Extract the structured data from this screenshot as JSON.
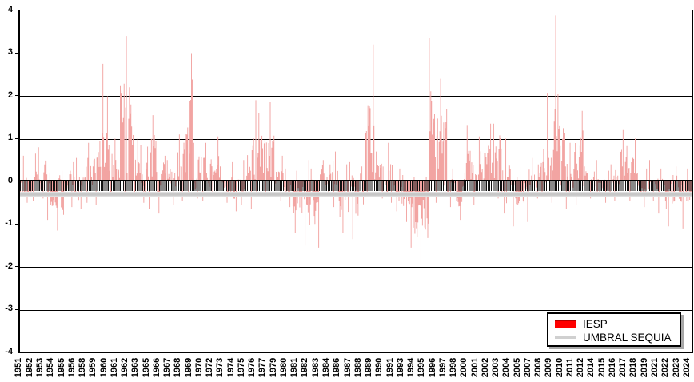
{
  "chart_data": {
    "type": "bar",
    "title": "",
    "description_visible": false,
    "x_range": [
      "1951-01",
      "2024-12"
    ],
    "total_months": 888,
    "x_label_month_interval": 14,
    "x_tick_labels": [
      "1951",
      "1952",
      "1953",
      "1954",
      "1955",
      "1956",
      "1958",
      "1959",
      "1960",
      "1961",
      "1962",
      "1963",
      "1965",
      "1966",
      "1967",
      "1968",
      "1969",
      "1970",
      "1972",
      "1973",
      "1974",
      "1975",
      "1976",
      "1977",
      "1979",
      "1980",
      "1981",
      "1982",
      "1983",
      "1984",
      "1986",
      "1987",
      "1988",
      "1989",
      "1990",
      "1991",
      "1993",
      "1994",
      "1995",
      "1996",
      "1997",
      "1998",
      "2000",
      "2001",
      "2002",
      "2003",
      "2004",
      "2005",
      "2007",
      "2008",
      "2009",
      "2010",
      "2011",
      "2012",
      "2014",
      "2015",
      "2016",
      "2017",
      "2018",
      "2019",
      "2021",
      "2022",
      "2023",
      "2024"
    ],
    "y_axis": {
      "min": -4,
      "max": 4,
      "tick_step": 1,
      "tick_labels": [
        "4",
        "3",
        "2",
        "1",
        "0",
        "-1",
        "-2",
        "-3",
        "-4"
      ],
      "grid": true,
      "grid_color": "#000000"
    },
    "series": [
      {
        "name": "IESP",
        "legend_color": "#ff0000",
        "bar_color": "#f2a4a2",
        "yearly_envelope": [
          {
            "year": 1951,
            "max": 0.6,
            "min": -0.5
          },
          {
            "year": 1952,
            "max": 0.65,
            "min": -0.45
          },
          {
            "year": 1953,
            "max": 0.8,
            "min": -0.4
          },
          {
            "year": 1954,
            "max": 0.2,
            "min": -0.9
          },
          {
            "year": 1955,
            "max": 0.25,
            "min": -1.15
          },
          {
            "year": 1956,
            "max": 0.45,
            "min": -0.6
          },
          {
            "year": 1957,
            "max": 0.55,
            "min": -0.65
          },
          {
            "year": 1958,
            "max": 0.9,
            "min": -0.5
          },
          {
            "year": 1959,
            "max": 0.95,
            "min": -0.55
          },
          {
            "year": 1960,
            "max": 2.75,
            "min": -0.3
          },
          {
            "year": 1961,
            "max": 1.0,
            "min": -0.35
          },
          {
            "year": 1962,
            "max": 3.4,
            "min": -0.25
          },
          {
            "year": 1963,
            "max": 2.2,
            "min": -0.3
          },
          {
            "year": 1964,
            "max": 0.85,
            "min": -0.5
          },
          {
            "year": 1965,
            "max": 1.55,
            "min": -0.65
          },
          {
            "year": 1966,
            "max": 0.6,
            "min": -0.75
          },
          {
            "year": 1967,
            "max": 0.5,
            "min": -0.55
          },
          {
            "year": 1968,
            "max": 1.1,
            "min": -0.45
          },
          {
            "year": 1969,
            "max": 3.0,
            "min": -0.25
          },
          {
            "year": 1970,
            "max": 0.9,
            "min": -0.4
          },
          {
            "year": 1971,
            "max": 0.9,
            "min": -0.45
          },
          {
            "year": 1972,
            "max": 1.05,
            "min": -0.35
          },
          {
            "year": 1973,
            "max": 0.35,
            "min": -0.5
          },
          {
            "year": 1974,
            "max": 0.45,
            "min": -0.7
          },
          {
            "year": 1975,
            "max": 0.5,
            "min": -0.55
          },
          {
            "year": 1976,
            "max": 1.9,
            "min": -0.65
          },
          {
            "year": 1977,
            "max": 1.6,
            "min": -0.3
          },
          {
            "year": 1978,
            "max": 1.85,
            "min": -0.35
          },
          {
            "year": 1979,
            "max": 0.6,
            "min": -0.45
          },
          {
            "year": 1980,
            "max": 0.3,
            "min": -0.6
          },
          {
            "year": 1981,
            "max": 0.25,
            "min": -1.2
          },
          {
            "year": 1982,
            "max": 0.5,
            "min": -1.5
          },
          {
            "year": 1983,
            "max": 0.3,
            "min": -1.55
          },
          {
            "year": 1984,
            "max": 0.5,
            "min": -0.35
          },
          {
            "year": 1985,
            "max": 0.7,
            "min": -0.6
          },
          {
            "year": 1986,
            "max": 0.4,
            "min": -1.2
          },
          {
            "year": 1987,
            "max": 0.45,
            "min": -1.35
          },
          {
            "year": 1988,
            "max": 0.35,
            "min": -0.8
          },
          {
            "year": 1989,
            "max": 3.2,
            "min": -0.25
          },
          {
            "year": 1990,
            "max": 0.7,
            "min": -0.4
          },
          {
            "year": 1991,
            "max": 0.9,
            "min": -0.5
          },
          {
            "year": 1992,
            "max": 0.3,
            "min": -0.7
          },
          {
            "year": 1993,
            "max": 0.15,
            "min": -0.95
          },
          {
            "year": 1994,
            "max": 0.1,
            "min": -1.55
          },
          {
            "year": 1995,
            "max": 0.1,
            "min": -1.95
          },
          {
            "year": 1996,
            "max": 3.35,
            "min": -0.5
          },
          {
            "year": 1997,
            "max": 2.4,
            "min": -0.1
          },
          {
            "year": 1998,
            "max": 0.3,
            "min": -0.6
          },
          {
            "year": 1999,
            "max": 0.2,
            "min": -0.9
          },
          {
            "year": 2000,
            "max": 1.3,
            "min": -0.55
          },
          {
            "year": 2001,
            "max": 1.05,
            "min": -0.25
          },
          {
            "year": 2002,
            "max": 1.35,
            "min": -0.3
          },
          {
            "year": 2003,
            "max": 1.35,
            "min": -0.4
          },
          {
            "year": 2004,
            "max": 1.0,
            "min": -0.75
          },
          {
            "year": 2005,
            "max": 0.1,
            "min": -1.05
          },
          {
            "year": 2006,
            "max": 0.35,
            "min": -0.95
          },
          {
            "year": 2007,
            "max": 0.55,
            "min": -0.4
          },
          {
            "year": 2008,
            "max": 0.75,
            "min": -0.25
          },
          {
            "year": 2009,
            "max": 3.88,
            "min": -0.5
          },
          {
            "year": 2010,
            "max": 2.05,
            "min": -0.1
          },
          {
            "year": 2011,
            "max": 0.9,
            "min": -0.65
          },
          {
            "year": 2012,
            "max": 1.65,
            "min": -0.55
          },
          {
            "year": 2013,
            "max": 0.35,
            "min": -0.4
          },
          {
            "year": 2014,
            "max": 0.5,
            "min": -0.3
          },
          {
            "year": 2015,
            "max": 0.25,
            "min": -0.5
          },
          {
            "year": 2016,
            "max": 0.4,
            "min": -0.45
          },
          {
            "year": 2017,
            "max": 1.2,
            "min": -0.35
          },
          {
            "year": 2018,
            "max": 1.0,
            "min": -0.45
          },
          {
            "year": 2019,
            "max": 0.3,
            "min": -0.6
          },
          {
            "year": 2020,
            "max": 0.5,
            "min": -0.45
          },
          {
            "year": 2021,
            "max": 0.3,
            "min": -0.75
          },
          {
            "year": 2022,
            "max": 0.15,
            "min": -1.05
          },
          {
            "year": 2023,
            "max": 0.35,
            "min": -1.1
          },
          {
            "year": 2024,
            "max": 0.3,
            "min": -0.75
          }
        ],
        "notable_peaks": [
          {
            "approx_date": "1960",
            "value": 2.75
          },
          {
            "approx_date": "1962",
            "value": 3.4
          },
          {
            "approx_date": "1969",
            "value": 3.0
          },
          {
            "approx_date": "1989",
            "value": 3.2
          },
          {
            "approx_date": "1996-97",
            "value": 3.35
          },
          {
            "approx_date": "2009-10",
            "value": 3.88
          },
          {
            "approx_date": "1995 (minimum)",
            "value": -1.95
          },
          {
            "approx_date": "1983 (minimum)",
            "value": -1.55
          }
        ]
      },
      {
        "name": "UMBRAL SEQUIA",
        "legend_color": "#d0d0d0",
        "type": "threshold-line",
        "value": -0.3
      }
    ],
    "legend": {
      "position": "bottom-right",
      "entries": [
        {
          "label": "IESP",
          "swatch": "red-bar"
        },
        {
          "label": "UMBRAL SEQUIA",
          "swatch": "gray-line"
        }
      ]
    }
  }
}
